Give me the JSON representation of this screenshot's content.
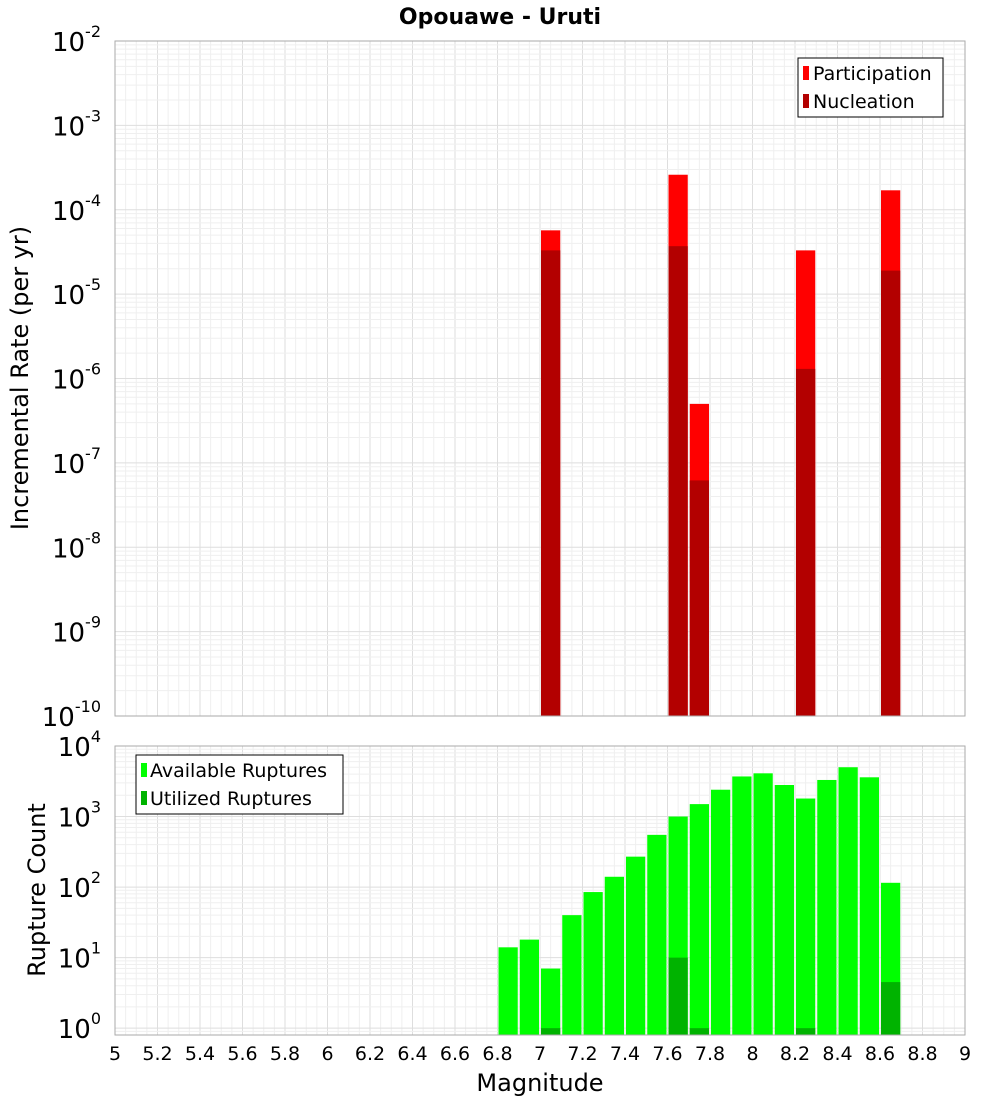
{
  "chart_data": [
    {
      "type": "bar",
      "title": "Opouawe - Uruti",
      "ylabel": "Incremental Rate (per yr)",
      "yscale": "log",
      "ylim": [
        1e-10,
        0.01
      ],
      "xlim": [
        5,
        9
      ],
      "bar_width": 0.1,
      "grid": true,
      "legend_position": "top-right",
      "y_ticks": [
        {
          "base": "10",
          "exp": "-10",
          "value": 1e-10
        },
        {
          "base": "10",
          "exp": "-9",
          "value": 1e-09
        },
        {
          "base": "10",
          "exp": "-8",
          "value": 1e-08
        },
        {
          "base": "10",
          "exp": "-7",
          "value": 1e-07
        },
        {
          "base": "10",
          "exp": "-6",
          "value": 1e-06
        },
        {
          "base": "10",
          "exp": "-5",
          "value": 1e-05
        },
        {
          "base": "10",
          "exp": "-4",
          "value": 0.0001
        },
        {
          "base": "10",
          "exp": "-3",
          "value": 0.001
        },
        {
          "base": "10",
          "exp": "-2",
          "value": 0.01
        }
      ],
      "series": [
        {
          "name": "Participation",
          "color": "#ff0000",
          "x": [
            7.05,
            7.65,
            7.75,
            8.25,
            8.65
          ],
          "values": [
            5.7e-05,
            0.00026,
            5e-07,
            3.3e-05,
            0.00017
          ]
        },
        {
          "name": "Nucleation",
          "color": "#b30000",
          "x": [
            7.05,
            7.65,
            7.75,
            8.25,
            8.65
          ],
          "values": [
            3.3e-05,
            3.7e-05,
            6.2e-08,
            1.3e-06,
            1.9e-05
          ]
        }
      ]
    },
    {
      "type": "bar",
      "xlabel": "Magnitude",
      "ylabel": "Rupture Count",
      "yscale": "log",
      "ylim": [
        0.8,
        10000
      ],
      "xlim": [
        5,
        9
      ],
      "bar_width": 0.1,
      "grid": true,
      "legend_position": "top-left",
      "x_ticks": [
        "5",
        "5.2",
        "5.4",
        "5.6",
        "5.8",
        "6",
        "6.2",
        "6.4",
        "6.6",
        "6.8",
        "7",
        "7.2",
        "7.4",
        "7.6",
        "7.8",
        "8",
        "8.2",
        "8.4",
        "8.6",
        "8.8",
        "9"
      ],
      "y_ticks": [
        {
          "base": "10",
          "exp": "0",
          "value": 1
        },
        {
          "base": "10",
          "exp": "1",
          "value": 10
        },
        {
          "base": "10",
          "exp": "2",
          "value": 100
        },
        {
          "base": "10",
          "exp": "3",
          "value": 1000
        },
        {
          "base": "10",
          "exp": "4",
          "value": 10000
        }
      ],
      "series": [
        {
          "name": "Available Ruptures",
          "color": "#00ff00",
          "x": [
            6.85,
            6.95,
            7.05,
            7.15,
            7.25,
            7.35,
            7.45,
            7.55,
            7.65,
            7.75,
            7.85,
            7.95,
            8.05,
            8.15,
            8.25,
            8.35,
            8.45,
            8.55,
            8.65
          ],
          "values": [
            14,
            18,
            7,
            40,
            85,
            140,
            270,
            550,
            1000,
            1500,
            2400,
            3700,
            4100,
            2800,
            1800,
            3300,
            5000,
            3600,
            115
          ]
        },
        {
          "name": "Utilized Ruptures",
          "color": "#00b300",
          "x": [
            7.05,
            7.65,
            7.75,
            8.25,
            8.65
          ],
          "values": [
            1,
            10,
            1,
            1,
            4.5
          ]
        }
      ]
    }
  ]
}
